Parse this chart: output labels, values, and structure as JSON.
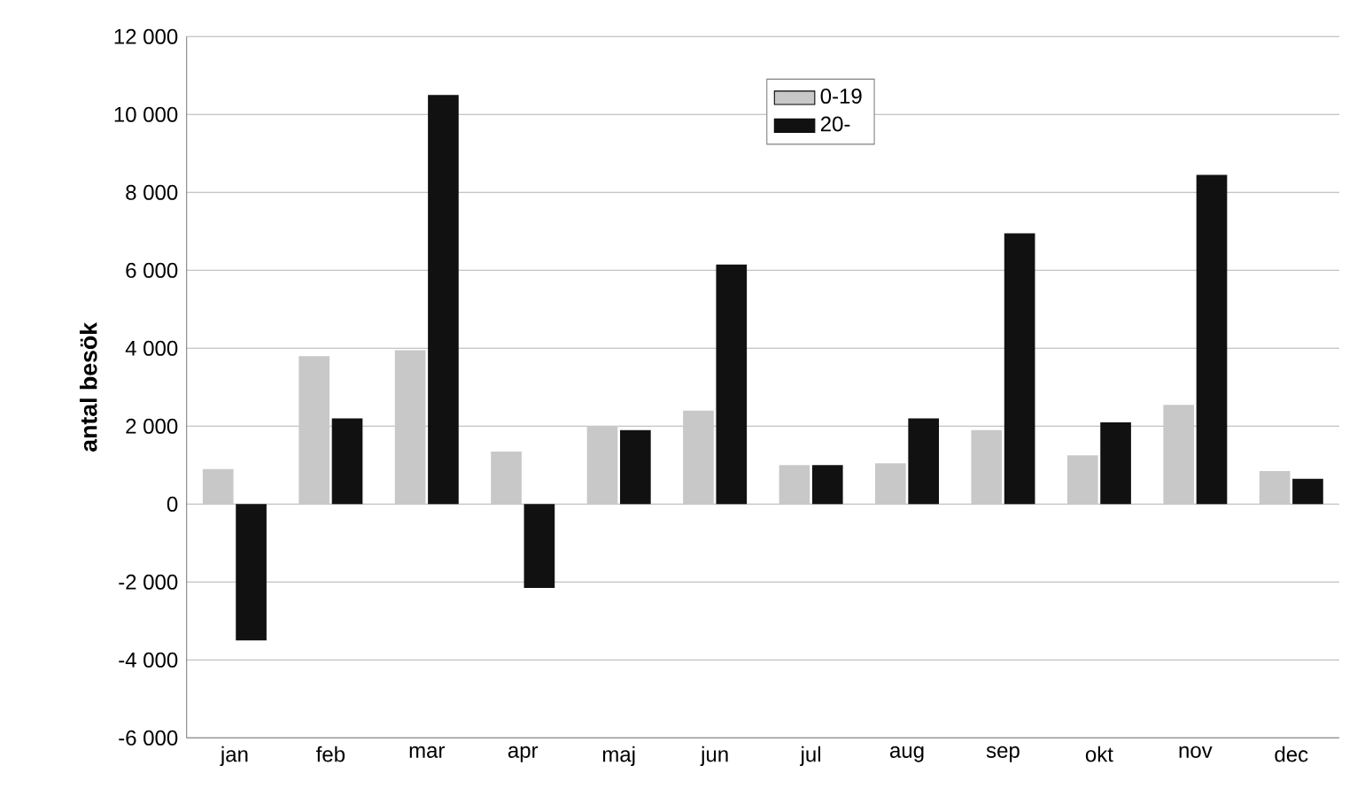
{
  "chart_data": {
    "type": "bar",
    "ylabel": "antal besök",
    "categories": [
      "jan",
      "feb",
      "mar",
      "apr",
      "maj",
      "jun",
      "jul",
      "aug",
      "sep",
      "okt",
      "nov",
      "dec"
    ],
    "series": [
      {
        "name": "0-19",
        "color": "#c8c8c8",
        "values": [
          900,
          3800,
          3950,
          1350,
          2000,
          2400,
          1000,
          1050,
          1900,
          1250,
          2550,
          850
        ]
      },
      {
        "name": "20-",
        "color": "#111111",
        "values": [
          -3500,
          2200,
          10500,
          -2150,
          1900,
          6150,
          1000,
          2200,
          6950,
          2100,
          8450,
          650
        ]
      }
    ],
    "ylim": [
      -6000,
      12000
    ],
    "yticks": [
      {
        "value": -6000,
        "label": "-6 000"
      },
      {
        "value": -4000,
        "label": "-4 000"
      },
      {
        "value": -2000,
        "label": "-2 000"
      },
      0,
      {
        "value": 2000,
        "label": "2 000"
      },
      {
        "value": 4000,
        "label": "4 000"
      },
      {
        "value": 6000,
        "label": "6 000"
      },
      {
        "value": 8000,
        "label": "8 000"
      },
      {
        "value": 10000,
        "label": "10 000"
      },
      {
        "value": 12000,
        "label": "12 000"
      }
    ],
    "grid": "y",
    "legend": "top"
  }
}
